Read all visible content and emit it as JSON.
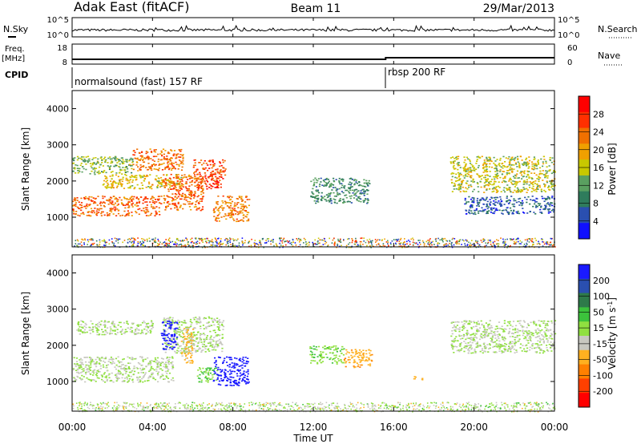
{
  "header": {
    "station": "Adak East (fitACF)",
    "beam": "Beam 11",
    "date": "29/Mar/2013"
  },
  "noise_panel": {
    "left_label": "N.Sky",
    "left_ticks": [
      "10^5",
      "10^0"
    ],
    "right_ticks": [
      "10^5",
      "10^0"
    ],
    "right_label": "N.Search"
  },
  "freq_panel": {
    "left_label_line1": "Freq.",
    "left_label_line2": "[MHz]",
    "left_ticks": [
      "18",
      "8"
    ],
    "right_ticks": [
      "60",
      "0"
    ],
    "right_label": "Nave",
    "freq_levels_mhz": [
      10.4,
      11.2
    ]
  },
  "cpid_panel": {
    "label": "CPID",
    "segments": [
      {
        "name": "normalsound (fast) 157 RF",
        "start_hour": 0
      },
      {
        "name": "rbsp 200 RF",
        "start_hour": 15.6
      }
    ]
  },
  "time_axis": {
    "label": "Time UT",
    "ticks": [
      "00:00",
      "04:00",
      "08:00",
      "12:00",
      "16:00",
      "20:00",
      "00:00"
    ]
  },
  "range_axis": {
    "label": "Slant Range [km]",
    "ticks": [
      "1000",
      "2000",
      "3000",
      "4000"
    ]
  },
  "power_scale": {
    "label": "Power [dB]",
    "ticks": [
      "4",
      "8",
      "12",
      "16",
      "20",
      "24",
      "28"
    ],
    "colors": [
      "#1010ff",
      "#2a4fb0",
      "#2f7c5c",
      "#5aa060",
      "#c8c800",
      "#f0a000",
      "#f07000",
      "#ff3000",
      "#ff0000"
    ]
  },
  "velocity_scale": {
    "label_main": "Velocity [m s",
    "label_sup": "-1",
    "label_end": "]",
    "ticks": [
      "200",
      "100",
      "50",
      "15",
      "-15",
      "-50",
      "-100",
      "-200"
    ],
    "colors": [
      "#1a1aff",
      "#2a4fb0",
      "#2e7a4a",
      "#3cc23c",
      "#90e040",
      "#c8c8c0",
      "#ffb020",
      "#ff8000",
      "#ff4000",
      "#ff0000"
    ]
  },
  "chart_data": [
    {
      "type": "heatmap",
      "name": "power",
      "xlabel": "Time UT",
      "ylabel": "Slant Range [km]",
      "xlim_hours": [
        0,
        24
      ],
      "ylim_km": [
        180,
        4500
      ],
      "colorbar": {
        "label": "Power [dB]",
        "range": [
          0,
          32
        ]
      },
      "blobs": [
        {
          "t0": 0.0,
          "t1": 4.4,
          "r0": 1050,
          "r1": 1600,
          "value": 24
        },
        {
          "t0": 0.0,
          "t1": 3.0,
          "r0": 2200,
          "r1": 2700,
          "value": 14
        },
        {
          "t0": 3.0,
          "t1": 5.5,
          "r0": 2300,
          "r1": 2900,
          "value": 23
        },
        {
          "t0": 1.5,
          "t1": 5.5,
          "r0": 1800,
          "r1": 2200,
          "value": 18
        },
        {
          "t0": 4.5,
          "t1": 6.5,
          "r0": 1200,
          "r1": 2200,
          "value": 24
        },
        {
          "t0": 6.0,
          "t1": 7.6,
          "r0": 1800,
          "r1": 2600,
          "value": 26
        },
        {
          "t0": 7.0,
          "t1": 8.8,
          "r0": 900,
          "r1": 1600,
          "value": 22
        },
        {
          "t0": 11.8,
          "t1": 14.8,
          "r0": 1400,
          "r1": 2100,
          "value": 10
        },
        {
          "t0": 18.8,
          "t1": 24.0,
          "r0": 1700,
          "r1": 2700,
          "value": 16
        },
        {
          "t0": 19.5,
          "t1": 24.0,
          "r0": 1100,
          "r1": 1600,
          "value": 6
        }
      ]
    },
    {
      "type": "heatmap",
      "name": "velocity",
      "xlabel": "Time UT",
      "ylabel": "Slant Range [km]",
      "xlim_hours": [
        0,
        24
      ],
      "ylim_km": [
        180,
        4500
      ],
      "colorbar": {
        "label": "Velocity [m s-1]",
        "range": [
          -250,
          250
        ]
      },
      "blobs": [
        {
          "t0": 0.0,
          "t1": 5.0,
          "r0": 1000,
          "r1": 1700,
          "value": 0
        },
        {
          "t0": 0.2,
          "t1": 4.0,
          "r0": 2300,
          "r1": 2700,
          "value": 0
        },
        {
          "t0": 4.5,
          "t1": 7.5,
          "r0": 1800,
          "r1": 2800,
          "value": 0
        },
        {
          "t0": 4.4,
          "t1": 5.2,
          "r0": 1900,
          "r1": 2700,
          "value": 220
        },
        {
          "t0": 5.4,
          "t1": 6.0,
          "r0": 1500,
          "r1": 2500,
          "value": -60
        },
        {
          "t0": 6.2,
          "t1": 7.2,
          "r0": 1000,
          "r1": 1400,
          "value": 50
        },
        {
          "t0": 7.0,
          "t1": 8.8,
          "r0": 900,
          "r1": 1700,
          "value": 220
        },
        {
          "t0": 11.8,
          "t1": 13.5,
          "r0": 1500,
          "r1": 2000,
          "value": 45
        },
        {
          "t0": 13.5,
          "t1": 14.9,
          "r0": 1400,
          "r1": 1900,
          "value": -90
        },
        {
          "t0": 16.8,
          "t1": 17.4,
          "r0": 1050,
          "r1": 1150,
          "value": -60
        },
        {
          "t0": 18.8,
          "t1": 24.0,
          "r0": 1800,
          "r1": 2700,
          "value": 0
        }
      ]
    }
  ]
}
